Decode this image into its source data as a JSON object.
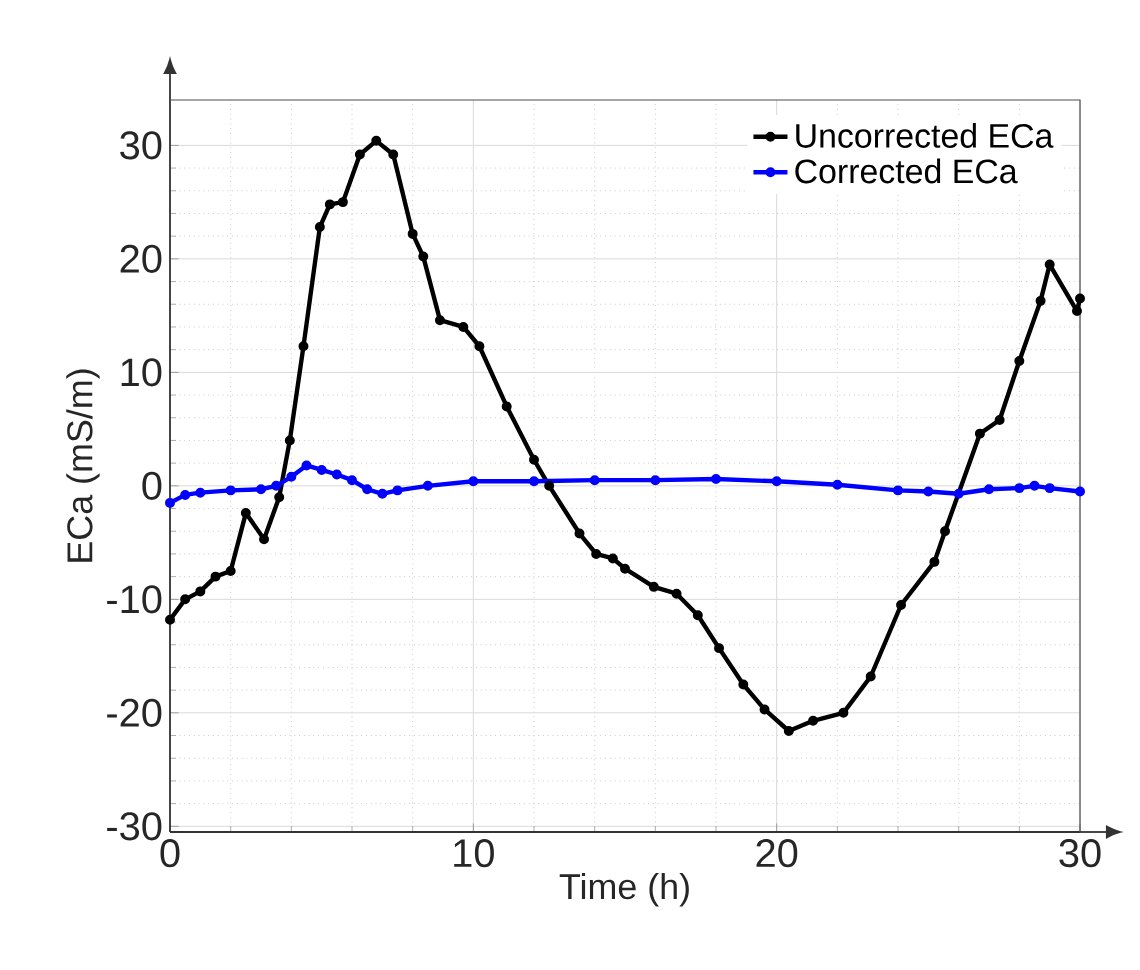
{
  "chart_data": {
    "type": "line",
    "xlabel": "Time (h)",
    "ylabel": "ECa (mS/m)",
    "xlim": [
      0,
      30
    ],
    "ylim": [
      -30.5,
      34
    ],
    "xticks": [
      0,
      10,
      20,
      30
    ],
    "yticks": [
      -30,
      -20,
      -10,
      0,
      10,
      20,
      30
    ],
    "grid": true,
    "legend": "top right",
    "marker": "circle",
    "line_style": "solid",
    "series": [
      {
        "name": "Uncorrected ECa",
        "color": "#000000",
        "x": [
          0,
          0.5,
          1,
          1.5,
          2,
          2.5,
          3.1,
          3.6,
          3.95,
          4.4,
          4.94,
          5.27,
          5.7,
          6.26,
          6.8,
          7.36,
          8.0,
          8.35,
          8.9,
          9.67,
          10.2,
          11.1,
          12.0,
          12.5,
          13.5,
          14.05,
          14.6,
          15.0,
          15.95,
          16.7,
          17.4,
          18.1,
          18.9,
          19.6,
          20.4,
          21.2,
          22.2,
          23.1,
          24.1,
          25.2,
          25.55,
          26.7,
          27.35,
          28.0,
          28.7,
          29.0,
          29.9,
          30
        ],
        "values": [
          -11.8,
          -10,
          -9.3,
          -8,
          -7.5,
          -2.4,
          -4.7,
          -1,
          4.0,
          12.3,
          22.8,
          24.8,
          25,
          29.2,
          30.4,
          29.2,
          22.2,
          20.2,
          14.6,
          14,
          12.3,
          7,
          2.3,
          0,
          -4.2,
          -6,
          -6.4,
          -7.3,
          -8.9,
          -9.5,
          -11.4,
          -14.3,
          -17.5,
          -19.7,
          -21.6,
          -20.7,
          -20,
          -16.8,
          -10.5,
          -6.7,
          -4,
          4.6,
          5.8,
          11,
          16.3,
          19.5,
          15.4,
          16.5
        ]
      },
      {
        "name": "Corrected ECa",
        "color": "#0000ff",
        "x": [
          0,
          0.5,
          1,
          2,
          3,
          3.5,
          4,
          4.5,
          5,
          5.5,
          6,
          6.5,
          7,
          7.5,
          8.5,
          10,
          12,
          14,
          16,
          18,
          20,
          22,
          24,
          25,
          26,
          27,
          28,
          28.5,
          29,
          30
        ],
        "values": [
          -1.5,
          -0.8,
          -0.6,
          -0.4,
          -0.3,
          0,
          0.8,
          1.8,
          1.4,
          1.0,
          0.5,
          -0.3,
          -0.7,
          -0.4,
          0,
          0.4,
          0.4,
          0.5,
          0.5,
          0.6,
          0.4,
          0.1,
          -0.4,
          -0.5,
          -0.7,
          -0.3,
          -0.2,
          0,
          -0.2,
          -0.5
        ]
      }
    ]
  }
}
